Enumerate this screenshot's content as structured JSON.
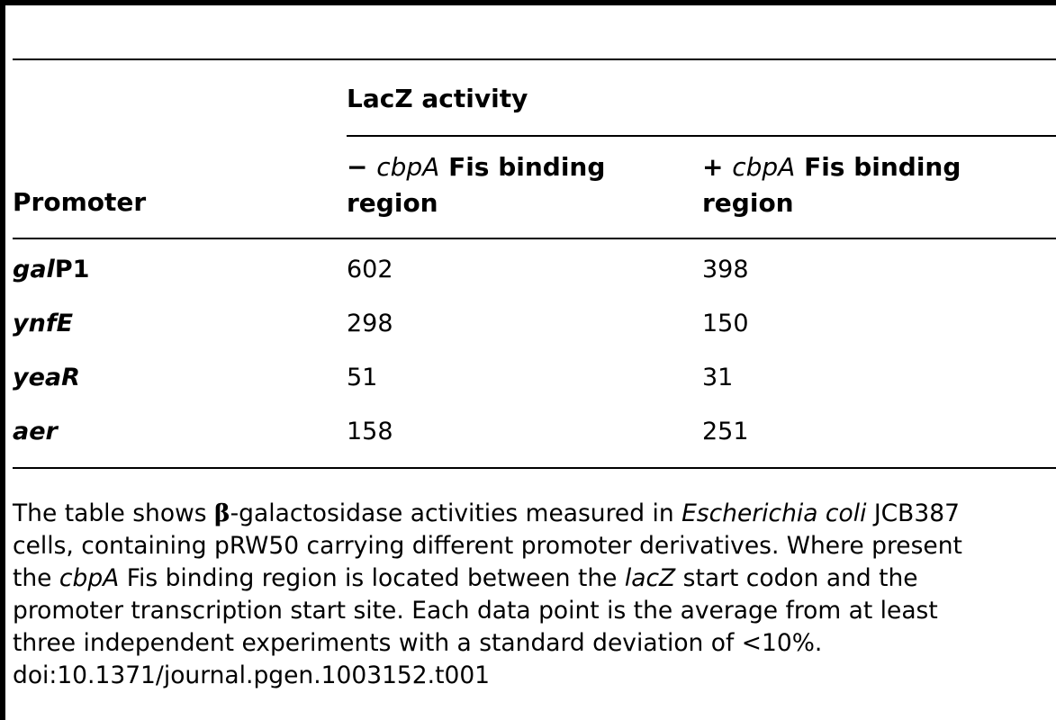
{
  "table": {
    "group_header": "LacZ activity",
    "columns": {
      "promoter": "Promoter",
      "minus_sign": "−",
      "minus_italic": "cbpA",
      "minus_rest_line1": "Fis binding",
      "minus_line2": "region",
      "plus_sign": "+",
      "plus_italic": "cbpA",
      "plus_rest_line1": "Fis binding",
      "plus_line2": "region"
    },
    "rows": [
      {
        "promoter_italic": "gal",
        "promoter_suffix": "P1",
        "minus": "602",
        "plus": "398"
      },
      {
        "promoter_italic": "ynfE",
        "promoter_suffix": "",
        "minus": "298",
        "plus": "150"
      },
      {
        "promoter_italic": "yeaR",
        "promoter_suffix": "",
        "minus": "51",
        "plus": "31"
      },
      {
        "promoter_italic": "aer",
        "promoter_suffix": "",
        "minus": "158",
        "plus": "251"
      }
    ]
  },
  "caption": {
    "l1a": "The table shows ",
    "beta": "β",
    "l1b": "-galactosidase activities measured in ",
    "l1c": "Escherichia coli",
    "l1d": " JCB387",
    "l2": "cells, containing pRW50 carrying different promoter derivatives. Where present",
    "l3a": "the ",
    "l3b": "cbpA",
    "l3c": " Fis binding region is located between the ",
    "l3d": "lacZ",
    "l3e": " start codon and the",
    "l4": "promoter transcription start site. Each data point is the average from at least",
    "l5a": "three independent experiments with a standard deviation of ",
    "l5b": "<",
    "l5c": "10%.",
    "doi": "doi:10.1371/journal.pgen.1003152.t001"
  }
}
